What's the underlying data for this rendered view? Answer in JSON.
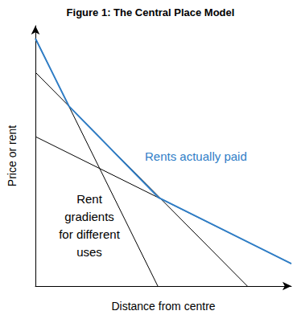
{
  "chart_data": {
    "type": "line",
    "title": "Figure 1: The Central Place Model",
    "x_label": "Distance from centre",
    "y_label": "Price or rent",
    "xlim": [
      0,
      100
    ],
    "ylim": [
      0,
      100
    ],
    "tick_labels": false,
    "grid": false,
    "series": [
      {
        "x": [
          0,
          47.8
        ],
        "values": [
          95.1,
          0
        ],
        "color": "#000000",
        "line_style": "solid"
      },
      {
        "x": [
          0,
          82.8
        ],
        "values": [
          82.1,
          0
        ],
        "color": "#000000",
        "line_style": "solid"
      },
      {
        "x": [
          0,
          100
        ],
        "values": [
          57.4,
          8.6
        ],
        "color": "#000000",
        "line_style": "solid"
      },
      {
        "x": [
          0,
          13.1,
          48.1,
          100
        ],
        "values": [
          95.1,
          69.1,
          34.0,
          8.6
        ],
        "color": "#2f7ec7",
        "line_style": "solid"
      }
    ],
    "annotations": [
      {
        "text": "Rents actually paid",
        "color": "#2f7ec7"
      },
      {
        "text": "Rent\ngradients\nfor different\nuses",
        "color": "#000000"
      }
    ]
  }
}
